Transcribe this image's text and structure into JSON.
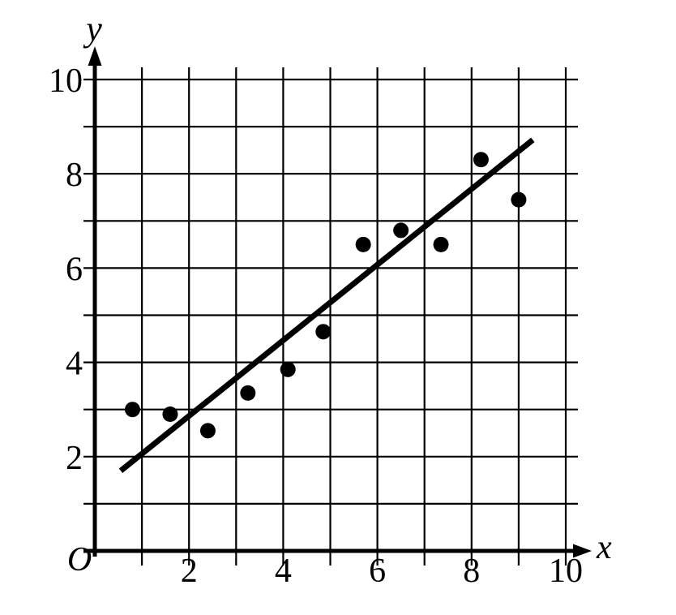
{
  "figure": {
    "background": "#ffffff",
    "ink_color": "#000000"
  },
  "chart_data": {
    "type": "scatter",
    "title": "",
    "xlabel": "x",
    "ylabel": "y",
    "origin_label": "O",
    "xlim": [
      0,
      10
    ],
    "ylim": [
      0,
      10
    ],
    "grid": true,
    "grid_step": 1,
    "x_tick_labels": [
      "2",
      "4",
      "6",
      "8",
      "10"
    ],
    "x_tick_values": [
      2,
      4,
      6,
      8,
      10
    ],
    "y_tick_labels": [
      "2",
      "4",
      "6",
      "8",
      "10"
    ],
    "y_tick_values": [
      2,
      4,
      6,
      8,
      10
    ],
    "points": [
      {
        "x": 0.8,
        "y": 3.0
      },
      {
        "x": 1.6,
        "y": 2.9
      },
      {
        "x": 2.4,
        "y": 2.55
      },
      {
        "x": 3.25,
        "y": 3.35
      },
      {
        "x": 4.1,
        "y": 3.85
      },
      {
        "x": 4.85,
        "y": 4.65
      },
      {
        "x": 5.7,
        "y": 6.5
      },
      {
        "x": 6.5,
        "y": 6.8
      },
      {
        "x": 7.35,
        "y": 6.5
      },
      {
        "x": 8.2,
        "y": 8.3
      },
      {
        "x": 9.0,
        "y": 7.45
      }
    ],
    "trend_line": {
      "x1": 0.55,
      "y1": 1.7,
      "x2": 9.3,
      "y2": 8.72
    }
  }
}
